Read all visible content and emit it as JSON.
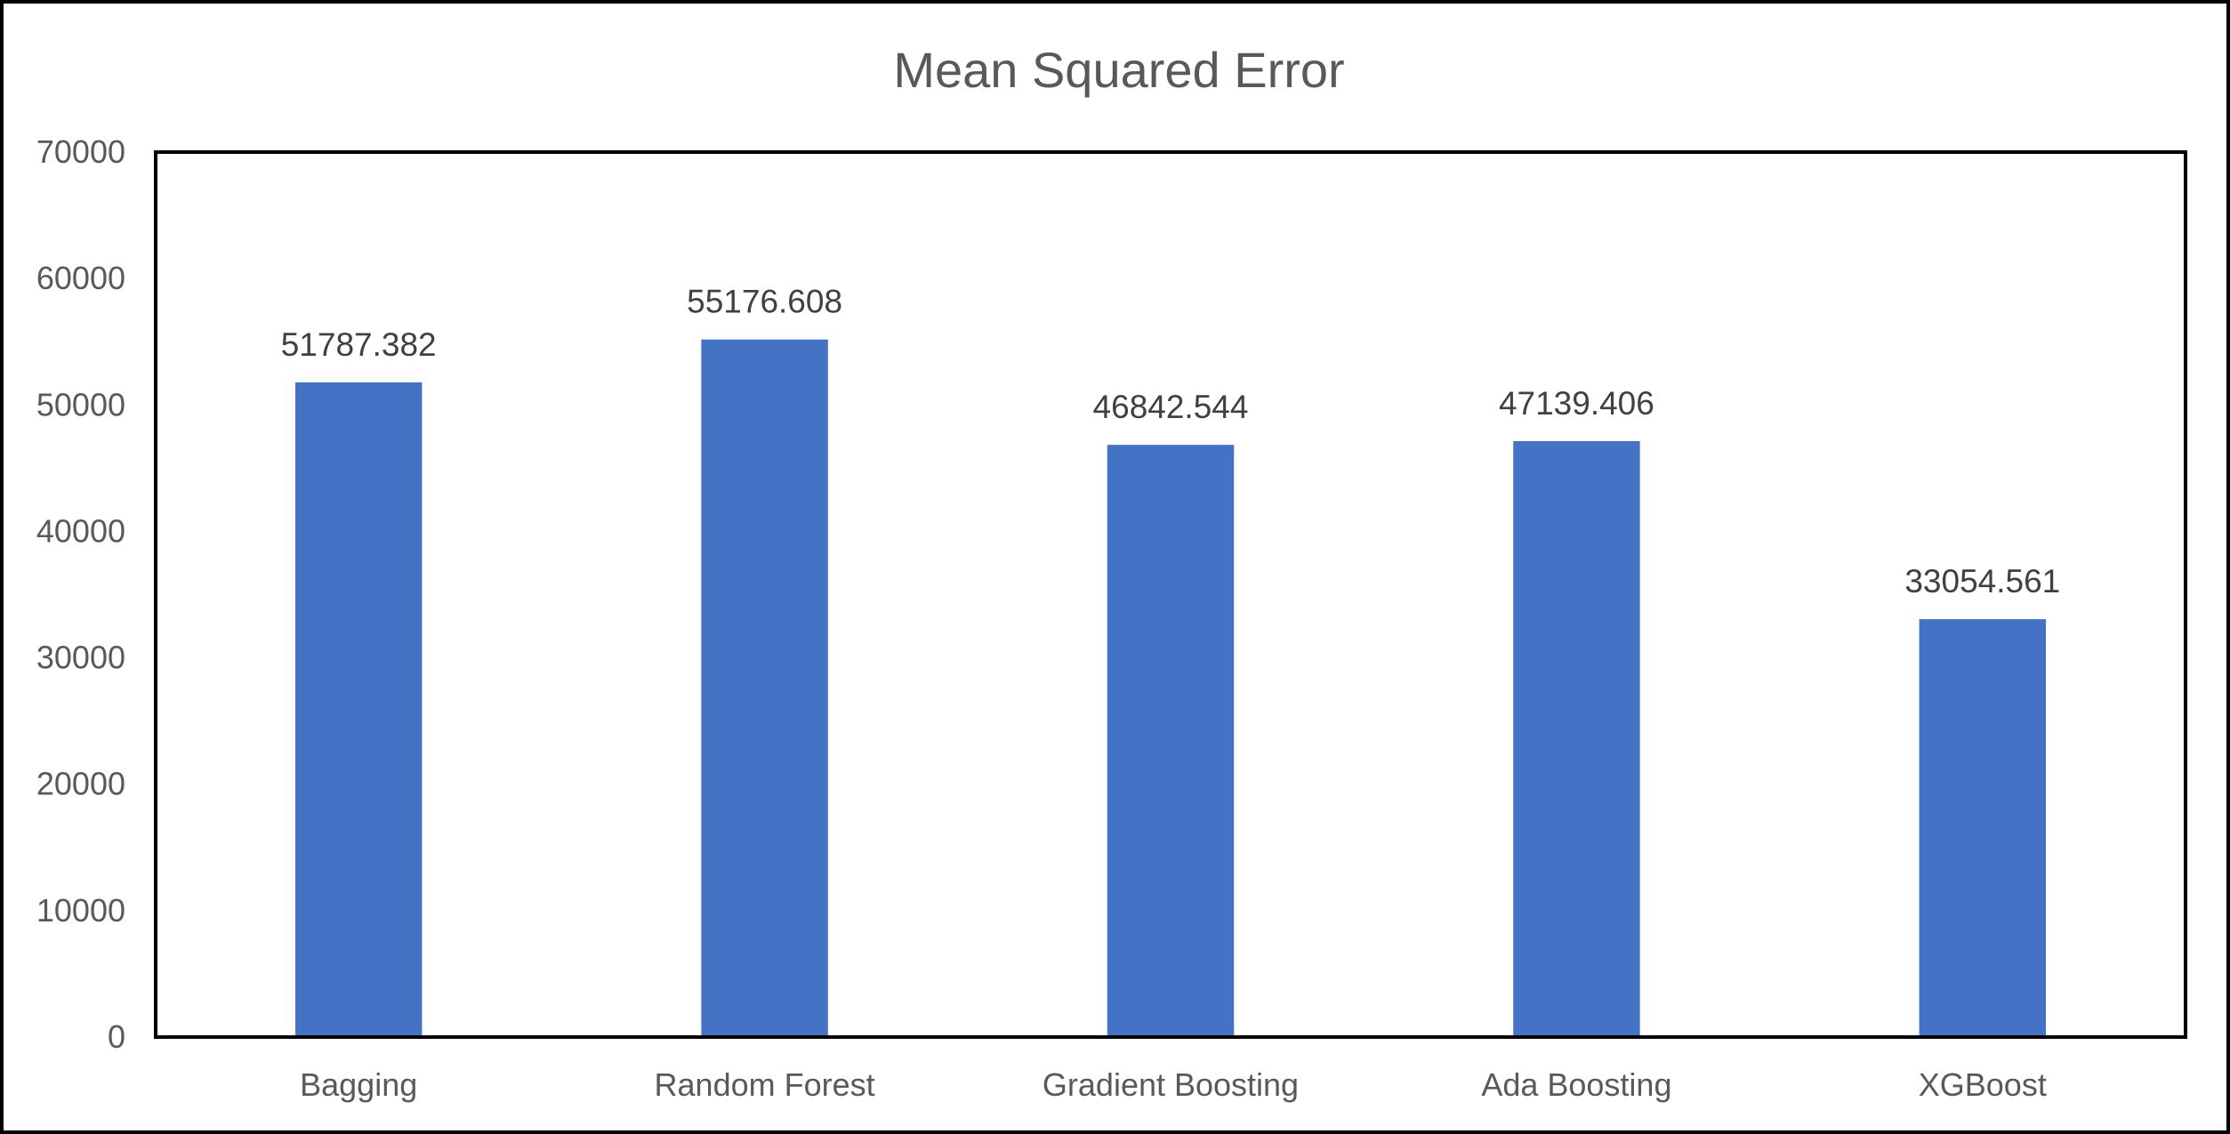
{
  "chart_data": {
    "type": "bar",
    "title": "Mean Squared Error",
    "xlabel": "",
    "ylabel": "",
    "categories": [
      "Bagging",
      "Random Forest",
      "Gradient Boosting",
      "Ada Boosting",
      "XGBoost"
    ],
    "values": [
      51787.382,
      55176.608,
      46842.544,
      47139.406,
      33054.561
    ],
    "data_labels": [
      "51787.382",
      "55176.608",
      "46842.544",
      "47139.406",
      "33054.561"
    ],
    "yticks": [
      0,
      10000,
      20000,
      30000,
      40000,
      50000,
      60000,
      70000
    ],
    "ylim": [
      0,
      70000
    ],
    "grid": false,
    "legend": "none",
    "bar_color": "#4472C4"
  }
}
